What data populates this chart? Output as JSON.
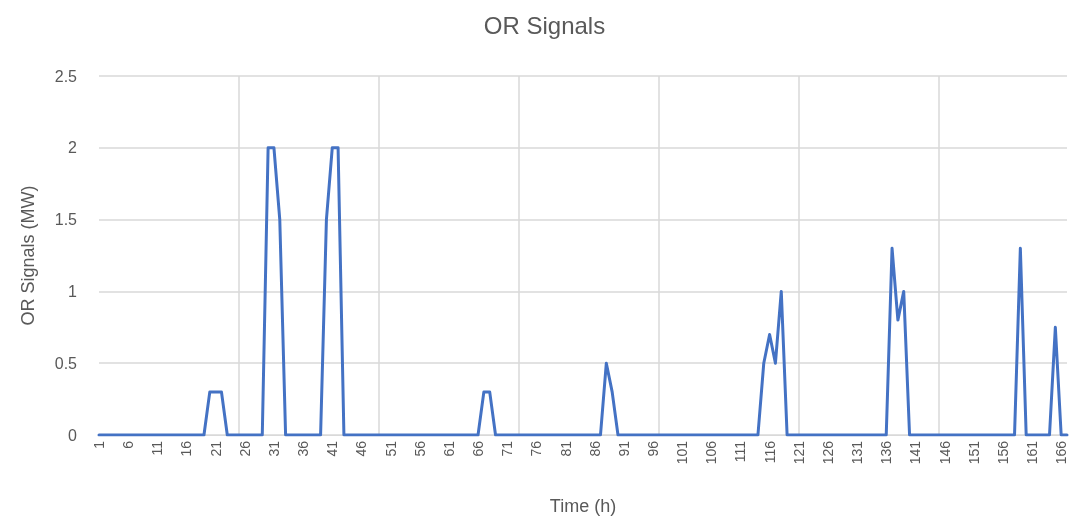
{
  "chart_data": {
    "type": "line",
    "title": "OR Signals",
    "xlabel": "Time (h)",
    "ylabel": "OR Signals (MW)",
    "categories": [
      "1",
      null,
      null,
      null,
      null,
      "6",
      null,
      null,
      null,
      null,
      "11",
      null,
      null,
      null,
      null,
      "16",
      null,
      null,
      null,
      null,
      "21",
      null,
      null,
      null,
      null,
      "26",
      null,
      null,
      null,
      null,
      "31",
      null,
      null,
      null,
      null,
      "36",
      null,
      null,
      null,
      null,
      "41",
      null,
      null,
      null,
      null,
      "46",
      null,
      null,
      null,
      null,
      "51",
      null,
      null,
      null,
      null,
      "56",
      null,
      null,
      null,
      null,
      "61",
      null,
      null,
      null,
      null,
      "66",
      null,
      null,
      null,
      null,
      "71",
      null,
      null,
      null,
      null,
      "76",
      null,
      null,
      null,
      null,
      "81",
      null,
      null,
      null,
      null,
      "86",
      null,
      null,
      null,
      null,
      "91",
      null,
      null,
      null,
      null,
      "96",
      null,
      null,
      null,
      null,
      "101",
      null,
      null,
      null,
      null,
      "106",
      null,
      null,
      null,
      null,
      "111",
      null,
      null,
      null,
      null,
      "116",
      null,
      null,
      null,
      null,
      "121",
      null,
      null,
      null,
      null,
      "126",
      null,
      null,
      null,
      null,
      "131",
      null,
      null,
      null,
      null,
      "136",
      null,
      null,
      null,
      null,
      "141",
      null,
      null,
      null,
      null,
      "146",
      null,
      null,
      null,
      null,
      "151",
      null,
      null,
      null,
      null,
      "156",
      null,
      null,
      null,
      null,
      "161",
      null,
      null,
      null,
      null,
      "166",
      null
    ],
    "series": [
      {
        "color": "#4472c4",
        "values": [
          0,
          0,
          0,
          0,
          0,
          0,
          0,
          0,
          0,
          0,
          0,
          0,
          0,
          0,
          0,
          0,
          0,
          0,
          0,
          0.3,
          0.3,
          0.3,
          0,
          0,
          0,
          0,
          0,
          0,
          0,
          2,
          2,
          1.5,
          0,
          0,
          0,
          0,
          0,
          0,
          0,
          1.5,
          2,
          2,
          0,
          0,
          0,
          0,
          0,
          0,
          0,
          0,
          0,
          0,
          0,
          0,
          0,
          0,
          0,
          0,
          0,
          0,
          0,
          0,
          0,
          0,
          0,
          0,
          0.3,
          0.3,
          0,
          0,
          0,
          0,
          0,
          0,
          0,
          0,
          0,
          0,
          0,
          0,
          0,
          0,
          0,
          0,
          0,
          0,
          0,
          0.5,
          0.3,
          0,
          0,
          0,
          0,
          0,
          0,
          0,
          0,
          0,
          0,
          0,
          0,
          0,
          0,
          0,
          0,
          0,
          0,
          0,
          0,
          0,
          0,
          0,
          0,
          0,
          0.5,
          0.7,
          0.5,
          1,
          0,
          0,
          0,
          0,
          0,
          0,
          0,
          0,
          0,
          0,
          0,
          0,
          0,
          0,
          0,
          0,
          0,
          0,
          1.3,
          0.8,
          1,
          0,
          0,
          0,
          0,
          0,
          0,
          0,
          0,
          0,
          0,
          0,
          0,
          0,
          0,
          0,
          0,
          0,
          0,
          0,
          1.3,
          0,
          0,
          0,
          0,
          0,
          0.75,
          0,
          0
        ]
      }
    ],
    "ylim": [
      0,
      2.5
    ],
    "yticks": [
      0,
      0.5,
      1,
      1.5,
      2,
      2.5
    ],
    "grid": true,
    "marker": "none",
    "line_style": "solid"
  }
}
